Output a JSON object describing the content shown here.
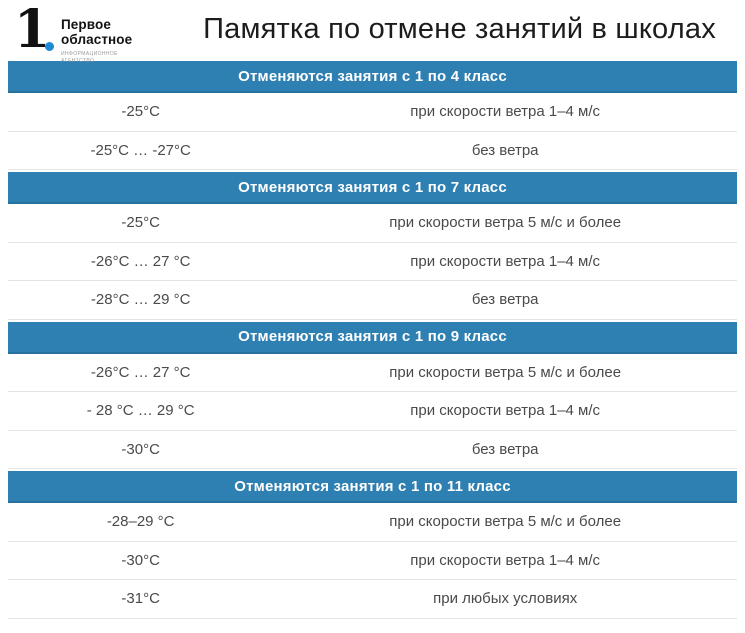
{
  "logo": {
    "digit": "1",
    "name_line1": "Первое",
    "name_line2": "областное",
    "sub_line1": "ИНФОРМАЦИОННОЕ",
    "sub_line2": "АГЕНТСТВО"
  },
  "title": "Памятка по отмене занятий в школах",
  "colors": {
    "header_bg": "#2e7fb2",
    "header_text": "#ffffff",
    "logo_dot": "#1d8ad3",
    "row_divider": "#e4e4e4",
    "cell_text": "#4a4a4a"
  },
  "sections": [
    {
      "header": "Отменяются занятия с 1 по 4 класс",
      "rows": [
        {
          "temperature": "-25°C",
          "condition": "при скорости ветра 1–4 м/с"
        },
        {
          "temperature": "-25°C … -27°C",
          "condition": "без ветра"
        }
      ]
    },
    {
      "header": "Отменяются занятия с 1 по 7 класс",
      "rows": [
        {
          "temperature": "-25°C",
          "condition": "при скорости ветра 5 м/с и более"
        },
        {
          "temperature": "-26°C … 27 °C",
          "condition": "при скорости ветра 1–4 м/с"
        },
        {
          "temperature": "-28°C … 29 °C",
          "condition": "без ветра"
        }
      ]
    },
    {
      "header": "Отменяются занятия с 1 по 9 класс",
      "rows": [
        {
          "temperature": "-26°C … 27 °C",
          "condition": "при скорости ветра 5 м/с и более"
        },
        {
          "temperature": "- 28 °C … 29 °C",
          "condition": "при скорости ветра 1–4 м/с"
        },
        {
          "temperature": "-30°C",
          "condition": "без ветра"
        }
      ]
    },
    {
      "header": "Отменяются занятия с 1 по 11 класс",
      "rows": [
        {
          "temperature": "-28–29 °C",
          "condition": "при скорости ветра 5 м/с и более"
        },
        {
          "temperature": "-30°C",
          "condition": "при скорости ветра 1–4 м/с"
        },
        {
          "temperature": "-31°C",
          "condition": "при любых условиях"
        }
      ]
    }
  ]
}
